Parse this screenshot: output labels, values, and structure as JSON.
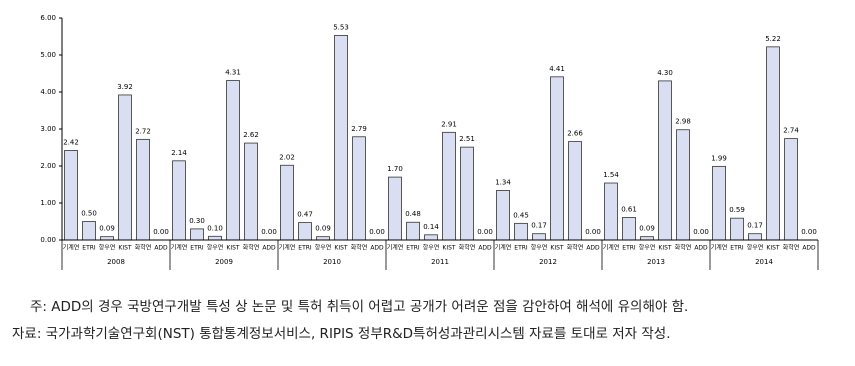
{
  "chart_data": {
    "type": "bar",
    "groups": [
      {
        "name": "2008",
        "categories": [
          "기계연",
          "ETRI",
          "항우연",
          "KIST",
          "화학연",
          "ADD"
        ],
        "values": [
          2.42,
          0.5,
          0.09,
          3.92,
          2.72,
          0
        ],
        "value_labels": [
          "2.42",
          "0.50",
          "0.09",
          "3.92",
          "2.72",
          "0.00"
        ]
      },
      {
        "name": "2009",
        "categories": [
          "기계연",
          "ETRI",
          "항우연",
          "KIST",
          "화학연",
          "ADD"
        ],
        "values": [
          2.14,
          0.3,
          0.1,
          4.31,
          2.62,
          0
        ],
        "value_labels": [
          "2.14",
          "0.30",
          "0.10",
          "4.31",
          "2.62",
          "0.00"
        ]
      },
      {
        "name": "2010",
        "categories": [
          "기계연",
          "ETRI",
          "항우연",
          "KIST",
          "화학연",
          "ADD"
        ],
        "values": [
          2.02,
          0.47,
          0.09,
          5.53,
          2.79,
          0
        ],
        "value_labels": [
          "2.02",
          "0.47",
          "0.09",
          "5.53",
          "2.79",
          "0.00"
        ]
      },
      {
        "name": "2011",
        "categories": [
          "기계연",
          "ETRI",
          "항우연",
          "KIST",
          "화학연",
          "ADD"
        ],
        "values": [
          1.7,
          0.48,
          0.14,
          2.91,
          2.51,
          0
        ],
        "value_labels": [
          "1.70",
          "0.48",
          "0.14",
          "2.91",
          "2.51",
          "0.00"
        ]
      },
      {
        "name": "2012",
        "categories": [
          "기계연",
          "ETRI",
          "항우연",
          "KIST",
          "화학연",
          "ADD"
        ],
        "values": [
          1.34,
          0.45,
          0.17,
          4.41,
          2.66,
          0
        ],
        "value_labels": [
          "1.34",
          "0.45",
          "0.17",
          "4.41",
          "2.66",
          "0.00"
        ]
      },
      {
        "name": "2013",
        "categories": [
          "기계연",
          "ETRI",
          "항우연",
          "KIST",
          "화학연",
          "ADD"
        ],
        "values": [
          1.54,
          0.61,
          0.09,
          4.3,
          2.98,
          0
        ],
        "value_labels": [
          "1.54",
          "0.61",
          "0.09",
          "4.30",
          "2.98",
          "0.00"
        ]
      },
      {
        "name": "2014",
        "categories": [
          "기계연",
          "ETRI",
          "항우연",
          "KIST",
          "화학연",
          "ADD"
        ],
        "values": [
          1.99,
          0.59,
          0.17,
          5.22,
          2.74,
          0
        ],
        "value_labels": [
          "1.99",
          "0.59",
          "0.17",
          "5.22",
          "2.74",
          "0.00"
        ]
      }
    ],
    "color": "#d9def2",
    "zero_label_color": "#cc0000",
    "ylim": [
      0,
      6
    ],
    "yticks": [
      {
        "value": 0,
        "label": "0.00"
      },
      {
        "value": 1,
        "label": "1.00"
      },
      {
        "value": 2,
        "label": "2.00"
      },
      {
        "value": 3,
        "label": "3.00"
      },
      {
        "value": 4,
        "label": "4.00"
      },
      {
        "value": 5,
        "label": "5.00"
      },
      {
        "value": 6,
        "label": "6.00"
      }
    ],
    "notes": [
      "주: ADD의 경우 국방연구개발 특성 상 논문 및 특허 취득이 어렵고 공개가 어려운 점을 감안하여 해석에 유의해야 함.",
      "자료: 국가과학기술연구회(NST) 통합통계정보서비스, RIPIS 정부R&D특허성과관리시스템 자료를 토대로 저자 작성."
    ]
  }
}
